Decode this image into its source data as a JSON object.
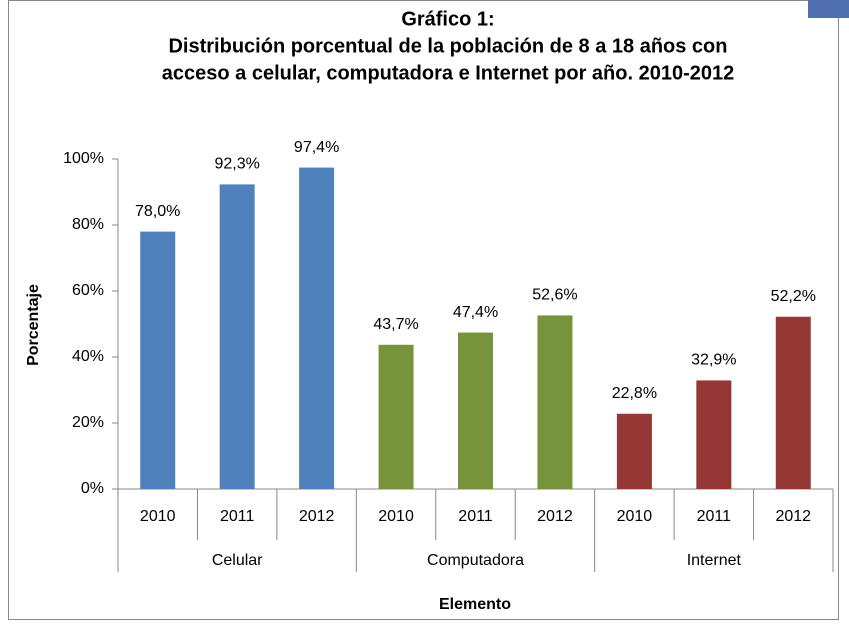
{
  "chart_data": {
    "type": "bar",
    "title": [
      "Gráfico 1:",
      "Distribución porcentual de la población de 8 a 18 años con",
      "acceso a celular, computadora e Internet por año. 2010-2012"
    ],
    "x_label": "Elemento",
    "y_label": "Porcentaje",
    "groups": [
      {
        "name": "Celular",
        "color": "#4f81bd",
        "categories": [
          "2010",
          "2011",
          "2012"
        ],
        "values": [
          78.0,
          92.3,
          97.4
        ],
        "value_labels": [
          "78,0%",
          "92,3%",
          "97,4%"
        ]
      },
      {
        "name": "Computadora",
        "color": "#77933c",
        "categories": [
          "2010",
          "2011",
          "2012"
        ],
        "values": [
          43.7,
          47.4,
          52.6
        ],
        "value_labels": [
          "43,7%",
          "47,4%",
          "52,6%"
        ]
      },
      {
        "name": "Internet",
        "color": "#953735",
        "categories": [
          "2010",
          "2011",
          "2012"
        ],
        "values": [
          22.8,
          32.9,
          52.2
        ],
        "value_labels": [
          "22,8%",
          "32,9%",
          "52,2%"
        ]
      }
    ],
    "ylim": [
      0,
      100
    ],
    "yticks": [
      {
        "value": 0,
        "label": "0%"
      },
      {
        "value": 20,
        "label": "20%"
      },
      {
        "value": 40,
        "label": "40%"
      },
      {
        "value": 60,
        "label": "60%"
      },
      {
        "value": 80,
        "label": "80%"
      },
      {
        "value": 100,
        "label": "100%"
      }
    ],
    "grid": false
  }
}
